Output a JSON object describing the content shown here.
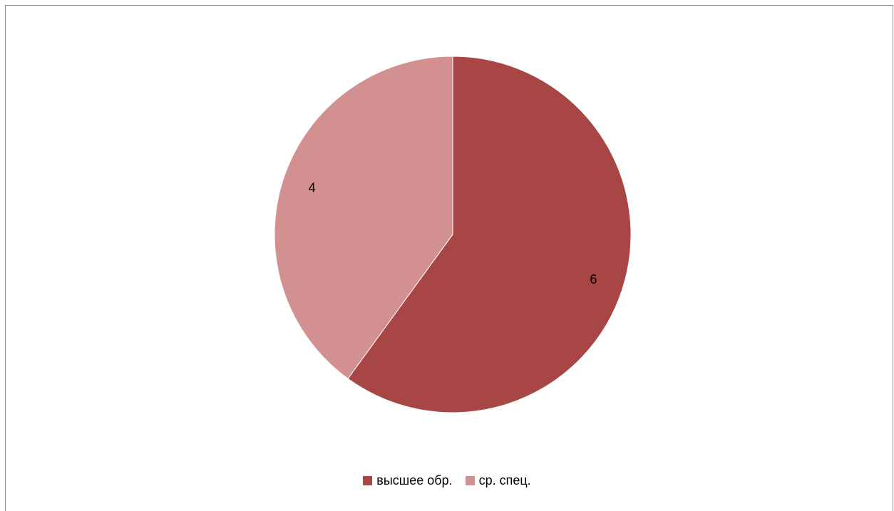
{
  "chart_data": {
    "type": "pie",
    "title": "",
    "categories": [
      "высшее обр.",
      "ср. спец."
    ],
    "values": [
      6,
      4
    ],
    "data_labels": [
      "6",
      "4"
    ],
    "colors": [
      "#A84646",
      "#D29090"
    ],
    "legend_placement": "bottom",
    "start_angle": "12 o'clock, clockwise"
  }
}
